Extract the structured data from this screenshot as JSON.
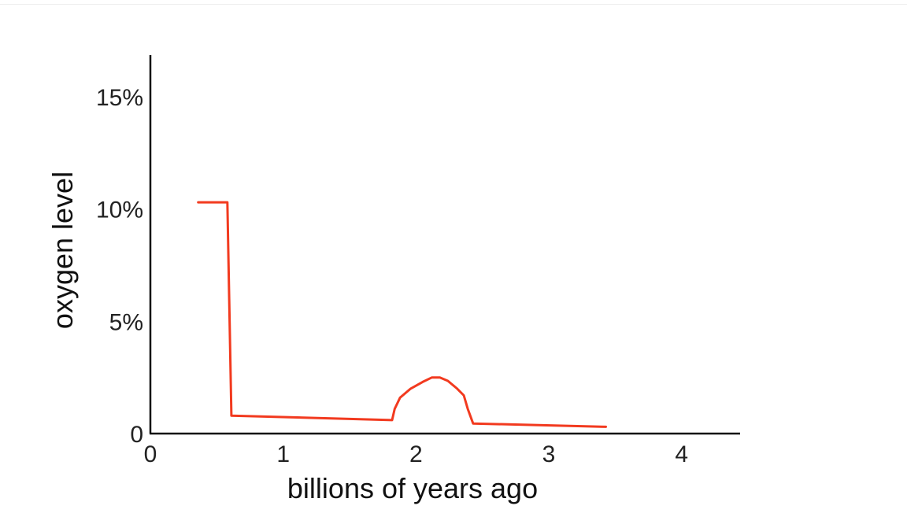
{
  "chart_data": {
    "type": "line",
    "xlabel": "billions of years ago",
    "ylabel": "oxygen level",
    "xlim": [
      0,
      4.5
    ],
    "ylim": [
      0,
      17
    ],
    "x_ticks": [
      {
        "value": 0,
        "label": "0"
      },
      {
        "value": 1,
        "label": "1"
      },
      {
        "value": 2,
        "label": "2"
      },
      {
        "value": 3,
        "label": "3"
      },
      {
        "value": 4,
        "label": "4"
      }
    ],
    "y_ticks": [
      {
        "value": 0,
        "label": "0"
      },
      {
        "value": 5,
        "label": "5%"
      },
      {
        "value": 10,
        "label": "10%"
      },
      {
        "value": 15,
        "label": "15%"
      }
    ],
    "grid": false,
    "legend": "none",
    "line_color": "#f23a1f",
    "axis_color": "#111111",
    "series": [
      {
        "x": [
          0.36,
          0.58,
          0.61,
          1.82,
          1.84,
          1.88,
          1.96,
          2.05,
          2.12,
          2.18,
          2.24,
          2.31,
          2.36,
          2.39,
          2.43,
          3.43
        ],
        "y": [
          10.3,
          10.3,
          0.8,
          0.6,
          1.1,
          1.6,
          2.0,
          2.3,
          2.5,
          2.5,
          2.35,
          2.0,
          1.7,
          1.1,
          0.45,
          0.3
        ]
      }
    ]
  }
}
